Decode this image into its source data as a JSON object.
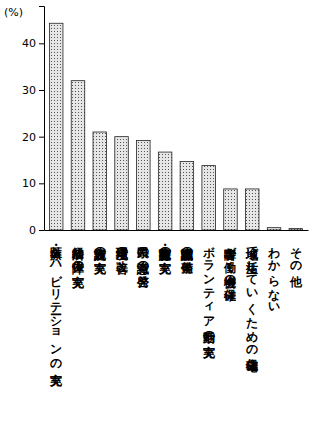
{
  "chart_data": {
    "type": "bar",
    "ylabel": "(%)",
    "categories": [
      "医療・リハビリテーションの充実",
      "経済的な保障の充実",
      "入所施設の充実",
      "生活環境の改善",
      "県民の意識の啓発",
      "教育・療育施設の充実",
      "職業訓練施設の整備",
      "ボランティア活動の充実",
      "障害者が働く機会の確保",
      "地域で生活していくための住宅確保",
      "わからない",
      "その他"
    ],
    "values": [
      44.3,
      32,
      21,
      20,
      19.2,
      16.7,
      14.7,
      13.8,
      8.8,
      8.8,
      0.5,
      0.3
    ],
    "color": "#e6e6e6",
    "ylim": [
      0,
      48
    ],
    "yticks": [
      0,
      10,
      20,
      30,
      40
    ],
    "grid": false
  }
}
